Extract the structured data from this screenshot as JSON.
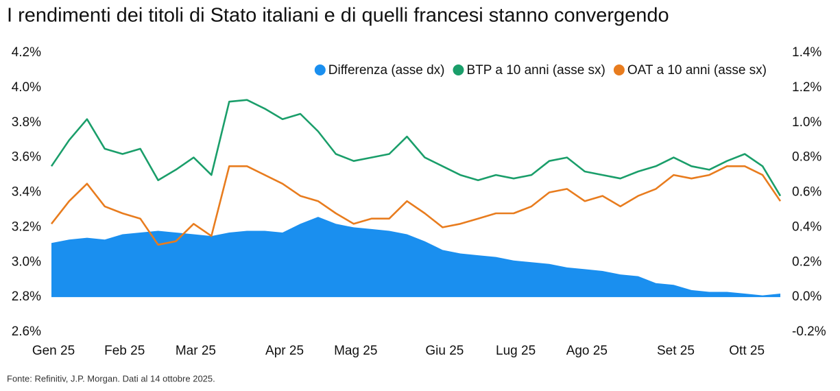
{
  "chart_data": {
    "type": "line",
    "title": "I rendimenti dei titoli di Stato italiani e di quelli francesi stanno convergendo",
    "source": "Fonte: Refinitiv, J.P. Morgan. Dati al 14 ottobre 2025.",
    "categories": [
      "Gen 25",
      null,
      null,
      null,
      "Feb 25",
      null,
      null,
      null,
      "Mar 25",
      null,
      null,
      null,
      null,
      "Apr 25",
      null,
      null,
      null,
      "Mag 25",
      null,
      null,
      null,
      null,
      "Giu 25",
      null,
      null,
      null,
      "Lug 25",
      null,
      null,
      null,
      "Ago 25",
      null,
      null,
      null,
      null,
      "Set 25",
      null,
      null,
      null,
      "Ott 25",
      null,
      null
    ],
    "series": [
      {
        "name": "Differenza (asse dx)",
        "type": "area",
        "axis": "y2",
        "color": "#1a8fef",
        "values": [
          0.31,
          0.33,
          0.34,
          0.33,
          0.36,
          0.37,
          0.38,
          0.37,
          0.36,
          0.35,
          0.37,
          0.38,
          0.38,
          0.37,
          0.42,
          0.46,
          0.42,
          0.4,
          0.39,
          0.38,
          0.36,
          0.32,
          0.27,
          0.25,
          0.24,
          0.23,
          0.21,
          0.2,
          0.19,
          0.17,
          0.16,
          0.15,
          0.13,
          0.12,
          0.08,
          0.07,
          0.04,
          0.03,
          0.03,
          0.02,
          0.01,
          0.02
        ]
      },
      {
        "name": "BTP a 10 anni (asse sx)",
        "type": "line",
        "axis": "y",
        "color": "#1a9e6a",
        "values": [
          3.55,
          3.7,
          3.82,
          3.65,
          3.62,
          3.65,
          3.47,
          3.53,
          3.6,
          3.5,
          3.92,
          3.93,
          3.88,
          3.82,
          3.85,
          3.75,
          3.62,
          3.58,
          3.6,
          3.62,
          3.72,
          3.6,
          3.55,
          3.5,
          3.47,
          3.5,
          3.48,
          3.5,
          3.58,
          3.6,
          3.52,
          3.5,
          3.48,
          3.52,
          3.55,
          3.6,
          3.55,
          3.53,
          3.58,
          3.62,
          3.55,
          3.38
        ]
      },
      {
        "name": "OAT a 10 anni (asse sx)",
        "type": "line",
        "axis": "y",
        "color": "#e87c1e",
        "values": [
          3.22,
          3.35,
          3.45,
          3.32,
          3.28,
          3.25,
          3.1,
          3.12,
          3.22,
          3.15,
          3.55,
          3.55,
          3.5,
          3.45,
          3.38,
          3.35,
          3.28,
          3.22,
          3.25,
          3.25,
          3.35,
          3.28,
          3.2,
          3.22,
          3.25,
          3.28,
          3.28,
          3.32,
          3.4,
          3.42,
          3.35,
          3.38,
          3.32,
          3.38,
          3.42,
          3.5,
          3.48,
          3.5,
          3.55,
          3.55,
          3.5,
          3.35
        ]
      }
    ],
    "ylim": [
      2.6,
      4.2
    ],
    "yticks": [
      {
        "value": 2.6,
        "label": "2.6%"
      },
      {
        "value": 2.8,
        "label": "2.8%"
      },
      {
        "value": 3.0,
        "label": "3.0%"
      },
      {
        "value": 3.2,
        "label": "3.2%"
      },
      {
        "value": 3.4,
        "label": "3.4%"
      },
      {
        "value": 3.6,
        "label": "3.6%"
      },
      {
        "value": 3.8,
        "label": "3.8%"
      },
      {
        "value": 4.0,
        "label": "4.0%"
      },
      {
        "value": 4.2,
        "label": "4.2%"
      }
    ],
    "y2lim": [
      -0.2,
      1.4
    ],
    "y2ticks": [
      {
        "value": -0.2,
        "label": "-0.2%"
      },
      {
        "value": 0,
        "label": "0.0%"
      },
      {
        "value": 0.2,
        "label": "0.2%"
      },
      {
        "value": 0.4,
        "label": "0.4%"
      },
      {
        "value": 0.6,
        "label": "0.6%"
      },
      {
        "value": 0.8,
        "label": "0.8%"
      },
      {
        "value": 1.0,
        "label": "1.0%"
      },
      {
        "value": 1.2,
        "label": "1.2%"
      },
      {
        "value": 1.4,
        "label": "1.4%"
      }
    ],
    "legend": "top-right"
  }
}
